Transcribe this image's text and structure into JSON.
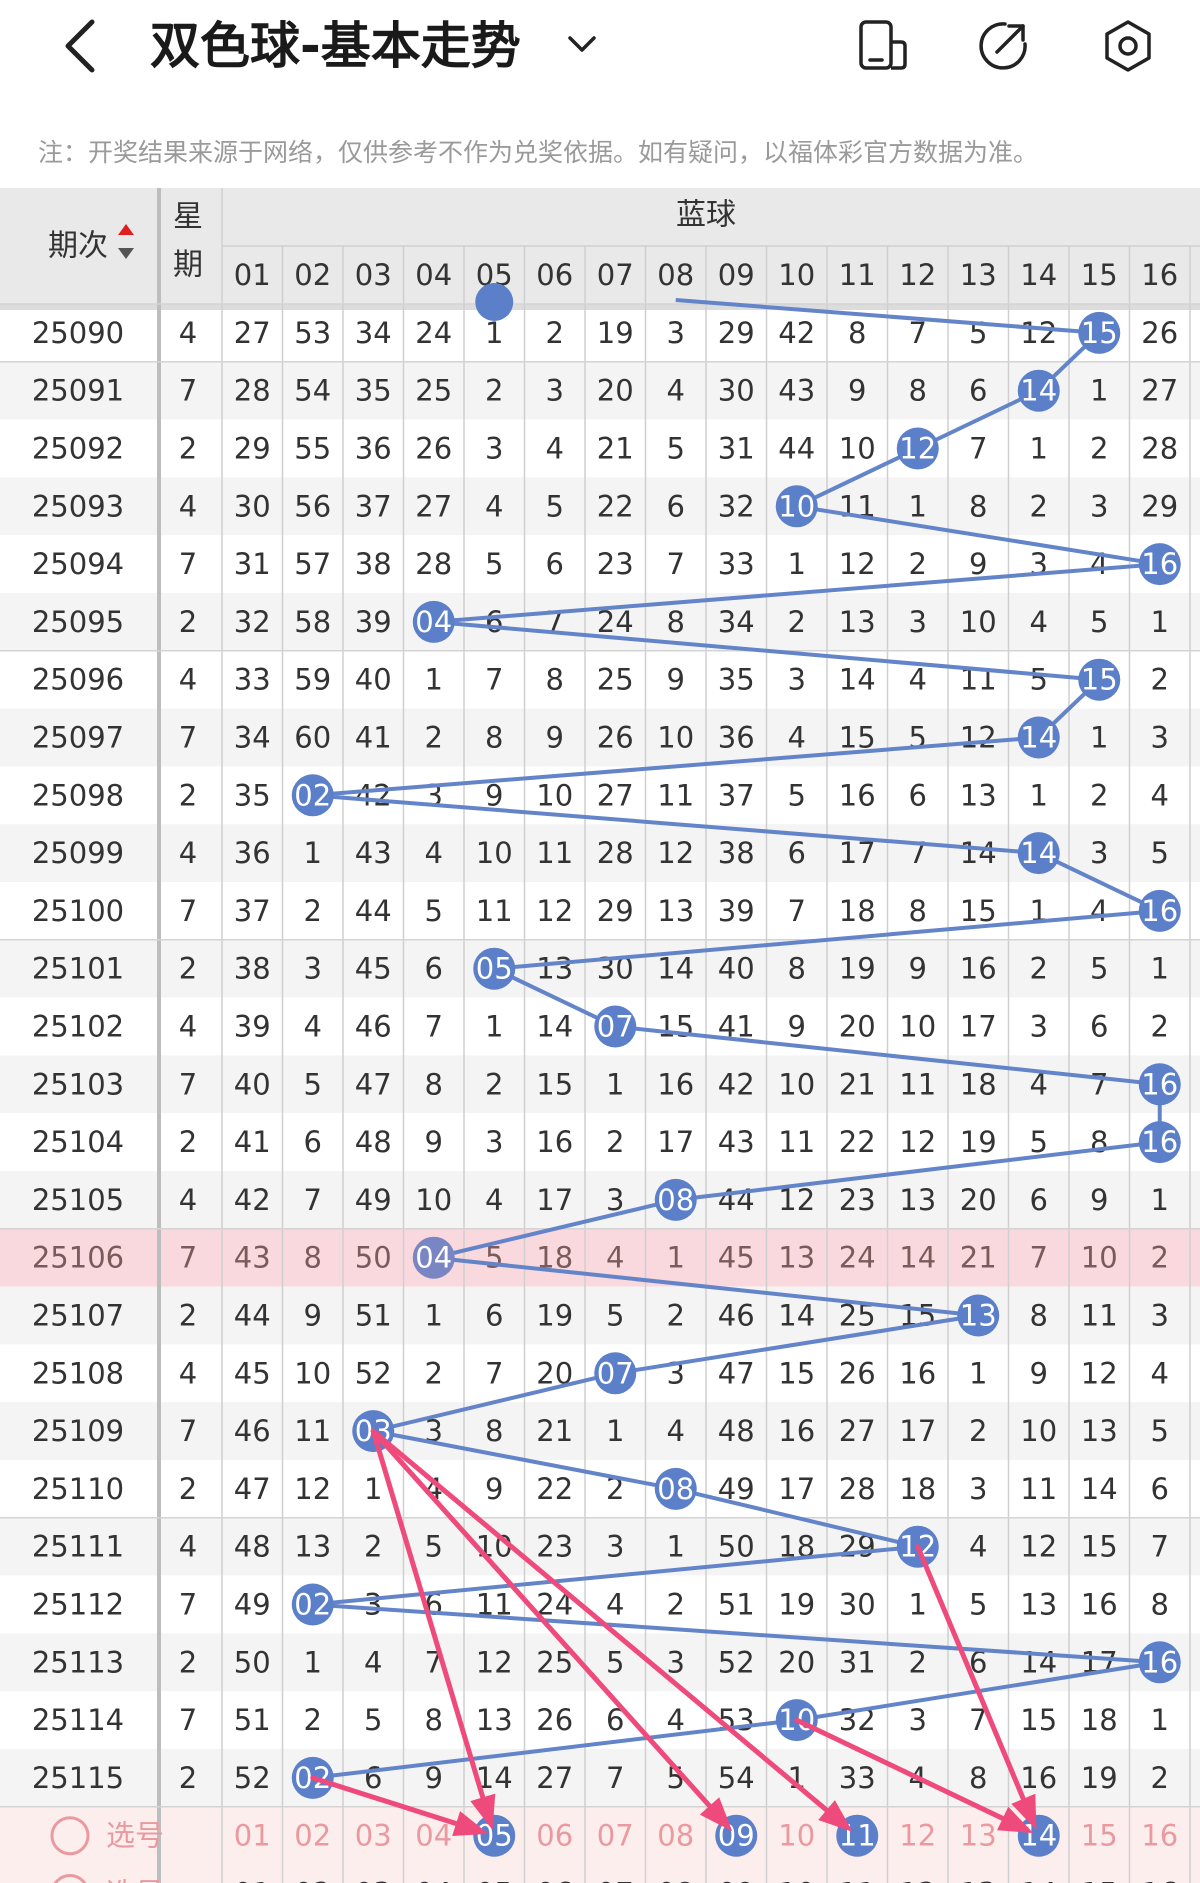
{
  "header": {
    "title": "双色球-基本走势",
    "icons": [
      "back-chevron-icon",
      "chevron-down-icon",
      "device-icon",
      "share-icon",
      "settings-icon"
    ]
  },
  "note": "注：开奖结果来源于网络，仅供参考不作为兑奖依据。如有疑问，以福体彩官方数据为准。",
  "table": {
    "col_period": "期次",
    "col_week": [
      "星",
      "期"
    ],
    "blue_title": "蓝球",
    "numbers": [
      "01",
      "02",
      "03",
      "04",
      "05",
      "06",
      "07",
      "08",
      "09",
      "10",
      "11",
      "12",
      "13",
      "14",
      "15",
      "16"
    ],
    "highlight_period": "25106",
    "rows": [
      {
        "period": "25090",
        "week": "4",
        "cells": [
          "27",
          "53",
          "34",
          "24",
          "1",
          "2",
          "19",
          "3",
          "29",
          "42",
          "8",
          "7",
          "5",
          "12",
          "15",
          "26"
        ],
        "hit": 15
      },
      {
        "period": "25091",
        "week": "7",
        "cells": [
          "28",
          "54",
          "35",
          "25",
          "2",
          "3",
          "20",
          "4",
          "30",
          "43",
          "9",
          "8",
          "6",
          "14",
          "1",
          "27"
        ],
        "hit": 14
      },
      {
        "period": "25092",
        "week": "2",
        "cells": [
          "29",
          "55",
          "36",
          "26",
          "3",
          "4",
          "21",
          "5",
          "31",
          "44",
          "10",
          "12",
          "7",
          "1",
          "2",
          "28"
        ],
        "hit": 12
      },
      {
        "period": "25093",
        "week": "4",
        "cells": [
          "30",
          "56",
          "37",
          "27",
          "4",
          "5",
          "22",
          "6",
          "32",
          "10",
          "11",
          "1",
          "8",
          "2",
          "3",
          "29"
        ],
        "hit": 10
      },
      {
        "period": "25094",
        "week": "7",
        "cells": [
          "31",
          "57",
          "38",
          "28",
          "5",
          "6",
          "23",
          "7",
          "33",
          "1",
          "12",
          "2",
          "9",
          "3",
          "4",
          "16"
        ],
        "hit": 16
      },
      {
        "period": "25095",
        "week": "2",
        "cells": [
          "32",
          "58",
          "39",
          "04",
          "6",
          "7",
          "24",
          "8",
          "34",
          "2",
          "13",
          "3",
          "10",
          "4",
          "5",
          "1"
        ],
        "hit": 4
      },
      {
        "period": "25096",
        "week": "4",
        "cells": [
          "33",
          "59",
          "40",
          "1",
          "7",
          "8",
          "25",
          "9",
          "35",
          "3",
          "14",
          "4",
          "11",
          "5",
          "15",
          "2"
        ],
        "hit": 15
      },
      {
        "period": "25097",
        "week": "7",
        "cells": [
          "34",
          "60",
          "41",
          "2",
          "8",
          "9",
          "26",
          "10",
          "36",
          "4",
          "15",
          "5",
          "12",
          "14",
          "1",
          "3"
        ],
        "hit": 14
      },
      {
        "period": "25098",
        "week": "2",
        "cells": [
          "35",
          "02",
          "42",
          "3",
          "9",
          "10",
          "27",
          "11",
          "37",
          "5",
          "16",
          "6",
          "13",
          "1",
          "2",
          "4"
        ],
        "hit": 2
      },
      {
        "period": "25099",
        "week": "4",
        "cells": [
          "36",
          "1",
          "43",
          "4",
          "10",
          "11",
          "28",
          "12",
          "38",
          "6",
          "17",
          "7",
          "14",
          "14",
          "3",
          "5"
        ],
        "hit": 14
      },
      {
        "period": "25100",
        "week": "7",
        "cells": [
          "37",
          "2",
          "44",
          "5",
          "11",
          "12",
          "29",
          "13",
          "39",
          "7",
          "18",
          "8",
          "15",
          "1",
          "4",
          "16"
        ],
        "hit": 16
      },
      {
        "period": "25101",
        "week": "2",
        "cells": [
          "38",
          "3",
          "45",
          "6",
          "05",
          "13",
          "30",
          "14",
          "40",
          "8",
          "19",
          "9",
          "16",
          "2",
          "5",
          "1"
        ],
        "hit": 5
      },
      {
        "period": "25102",
        "week": "4",
        "cells": [
          "39",
          "4",
          "46",
          "7",
          "1",
          "14",
          "07",
          "15",
          "41",
          "9",
          "20",
          "10",
          "17",
          "3",
          "6",
          "2"
        ],
        "hit": 7
      },
      {
        "period": "25103",
        "week": "7",
        "cells": [
          "40",
          "5",
          "47",
          "8",
          "2",
          "15",
          "1",
          "16",
          "42",
          "10",
          "21",
          "11",
          "18",
          "4",
          "7",
          "16"
        ],
        "hit": 16
      },
      {
        "period": "25104",
        "week": "2",
        "cells": [
          "41",
          "6",
          "48",
          "9",
          "3",
          "16",
          "2",
          "17",
          "43",
          "11",
          "22",
          "12",
          "19",
          "5",
          "8",
          "16"
        ],
        "hit": 16
      },
      {
        "period": "25105",
        "week": "4",
        "cells": [
          "42",
          "7",
          "49",
          "10",
          "4",
          "17",
          "3",
          "08",
          "44",
          "12",
          "23",
          "13",
          "20",
          "6",
          "9",
          "1"
        ],
        "hit": 8
      },
      {
        "period": "25106",
        "week": "7",
        "cells": [
          "43",
          "8",
          "50",
          "04",
          "5",
          "18",
          "4",
          "1",
          "45",
          "13",
          "24",
          "14",
          "21",
          "7",
          "10",
          "2"
        ],
        "hit": 4
      },
      {
        "period": "25107",
        "week": "2",
        "cells": [
          "44",
          "9",
          "51",
          "1",
          "6",
          "19",
          "5",
          "2",
          "46",
          "14",
          "25",
          "15",
          "13",
          "8",
          "11",
          "3"
        ],
        "hit": 13
      },
      {
        "period": "25108",
        "week": "4",
        "cells": [
          "45",
          "10",
          "52",
          "2",
          "7",
          "20",
          "07",
          "3",
          "47",
          "15",
          "26",
          "16",
          "1",
          "9",
          "12",
          "4"
        ],
        "hit": 7
      },
      {
        "period": "25109",
        "week": "7",
        "cells": [
          "46",
          "11",
          "03",
          "3",
          "8",
          "21",
          "1",
          "4",
          "48",
          "16",
          "27",
          "17",
          "2",
          "10",
          "13",
          "5"
        ],
        "hit": 3
      },
      {
        "period": "25110",
        "week": "2",
        "cells": [
          "47",
          "12",
          "1",
          "4",
          "9",
          "22",
          "2",
          "08",
          "49",
          "17",
          "28",
          "18",
          "3",
          "11",
          "14",
          "6"
        ],
        "hit": 8
      },
      {
        "period": "25111",
        "week": "4",
        "cells": [
          "48",
          "13",
          "2",
          "5",
          "10",
          "23",
          "3",
          "1",
          "50",
          "18",
          "29",
          "12",
          "4",
          "12",
          "15",
          "7"
        ],
        "hit": 12
      },
      {
        "period": "25112",
        "week": "7",
        "cells": [
          "49",
          "02",
          "3",
          "6",
          "11",
          "24",
          "4",
          "2",
          "51",
          "19",
          "30",
          "1",
          "5",
          "13",
          "16",
          "8"
        ],
        "hit": 2
      },
      {
        "period": "25113",
        "week": "2",
        "cells": [
          "50",
          "1",
          "4",
          "7",
          "12",
          "25",
          "5",
          "3",
          "52",
          "20",
          "31",
          "2",
          "6",
          "14",
          "17",
          "16"
        ],
        "hit": 16
      },
      {
        "period": "25114",
        "week": "7",
        "cells": [
          "51",
          "2",
          "5",
          "8",
          "13",
          "26",
          "6",
          "4",
          "53",
          "10",
          "32",
          "3",
          "7",
          "15",
          "18",
          "1"
        ],
        "hit": 10
      },
      {
        "period": "25115",
        "week": "2",
        "cells": [
          "52",
          "02",
          "6",
          "9",
          "14",
          "27",
          "7",
          "5",
          "54",
          "1",
          "33",
          "4",
          "8",
          "16",
          "19",
          "2"
        ],
        "hit": 2
      }
    ],
    "select_label": "选号",
    "select_label_2": "选号",
    "selected": [
      5,
      9,
      11,
      14
    ],
    "arrows": [
      [
        19,
        5
      ],
      [
        19,
        9
      ],
      [
        19,
        11
      ],
      [
        21,
        14
      ],
      [
        24,
        14
      ],
      [
        25,
        5
      ]
    ]
  },
  "colors": {
    "ball": "#5b7fc9",
    "line": "#6384c9",
    "highlight_row": "#f9d9dd",
    "select_row": "#fdeeee",
    "select_text": "#ea9a9f",
    "arrow": "#ef4a7c",
    "header_bg": "#e9e9e9",
    "grid_line": "#cfcfcf"
  }
}
